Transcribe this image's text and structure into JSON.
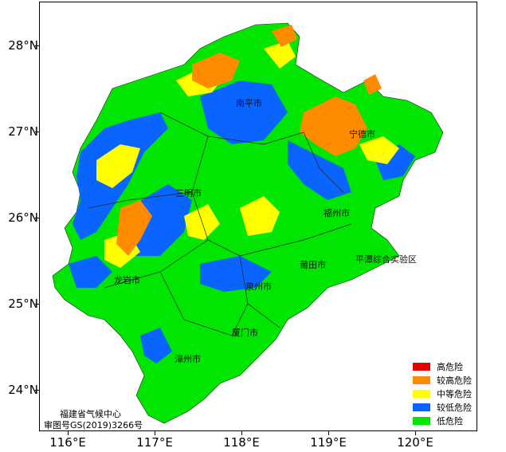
{
  "map": {
    "y_axis_labels": [
      "28°N",
      "27°N",
      "26°N",
      "25°N",
      "24°N"
    ],
    "x_axis_labels": [
      "116°E",
      "117°E",
      "118°E",
      "119°E",
      "120°E"
    ],
    "cities": {
      "nanping": "南平市",
      "ningde": "宁德市",
      "sanming": "三明市",
      "fuzhou": "福州市",
      "pingtan": "平潭综合实验区",
      "putian": "莆田市",
      "longyan": "龙岩市",
      "quanzhou": "泉州市",
      "xiamen": "厦门市",
      "zhangzhou": "漳州市"
    },
    "credit_line1": "福建省气候中心",
    "credit_line2": "审图号GS(2019)3266号",
    "legend": [
      {
        "label": "高危险",
        "color": "#e60000"
      },
      {
        "label": "较高危险",
        "color": "#ff8c00"
      },
      {
        "label": "中等危险",
        "color": "#ffff00"
      },
      {
        "label": "较低危险",
        "color": "#0a64ff"
      },
      {
        "label": "低危险",
        "color": "#00e600"
      }
    ]
  }
}
